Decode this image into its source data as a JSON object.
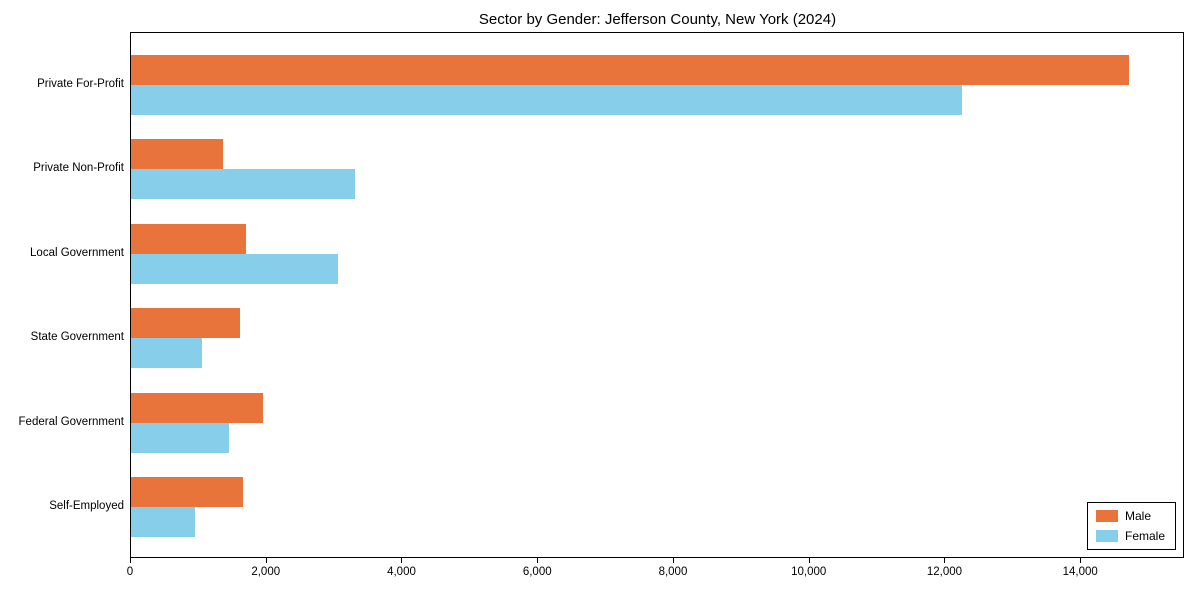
{
  "chart_data": {
    "type": "bar",
    "orientation": "horizontal",
    "title": "Sector by Gender: Jefferson County, New York (2024)",
    "categories": [
      "Private For-Profit",
      "Private Non-Profit",
      "Local Government",
      "State Government",
      "Federal Government",
      "Self-Employed"
    ],
    "series": [
      {
        "name": "Male",
        "color": "#e8743b",
        "values": [
          14700,
          1350,
          1700,
          1600,
          1950,
          1650
        ]
      },
      {
        "name": "Female",
        "color": "#87ceeb",
        "values": [
          12250,
          3300,
          3050,
          1050,
          1450,
          950
        ]
      }
    ],
    "xlim": [
      0,
      15500
    ],
    "xticks": [
      0,
      2000,
      4000,
      6000,
      8000,
      10000,
      12000,
      14000
    ],
    "xtick_labels": [
      "0",
      "2,000",
      "4,000",
      "6,000",
      "8,000",
      "10,000",
      "12,000",
      "14,000"
    ],
    "grid": false,
    "legend_position": "lower right"
  }
}
